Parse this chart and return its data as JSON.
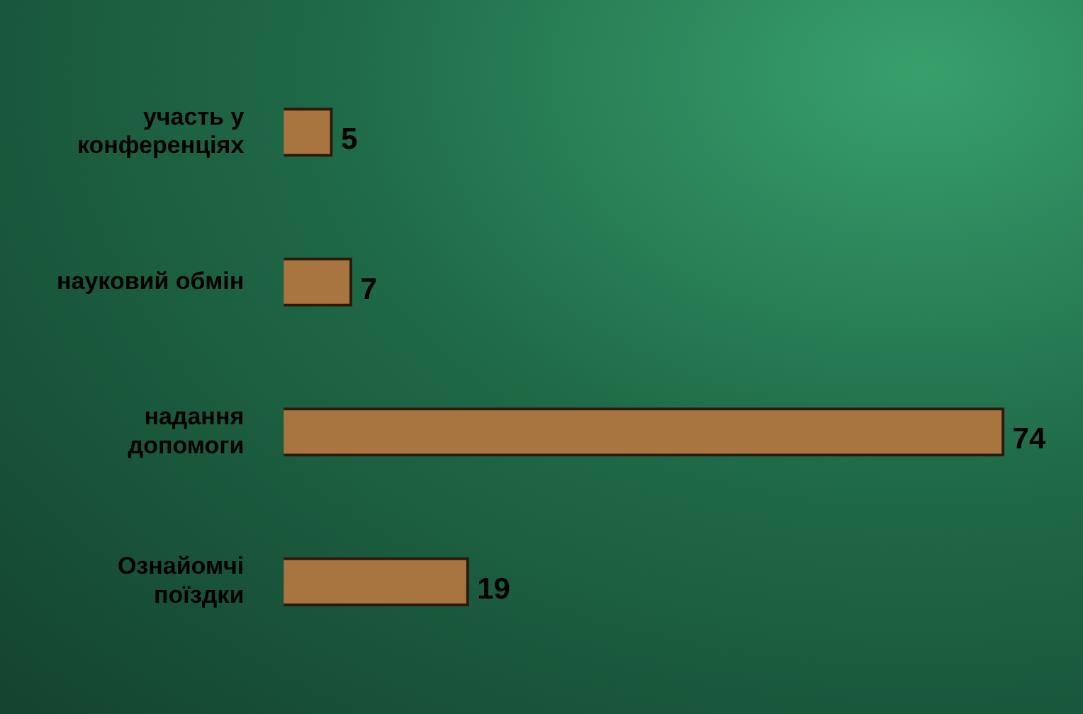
{
  "chart_data": {
    "type": "bar",
    "orientation": "horizontal",
    "categories": [
      "участь у конференціях",
      "науковий обмін",
      "надання допомоги",
      "Ознайомчі поїздки"
    ],
    "values": [
      5,
      7,
      74,
      19
    ],
    "color": "#a8743f",
    "data_labels": true,
    "legend": false
  }
}
